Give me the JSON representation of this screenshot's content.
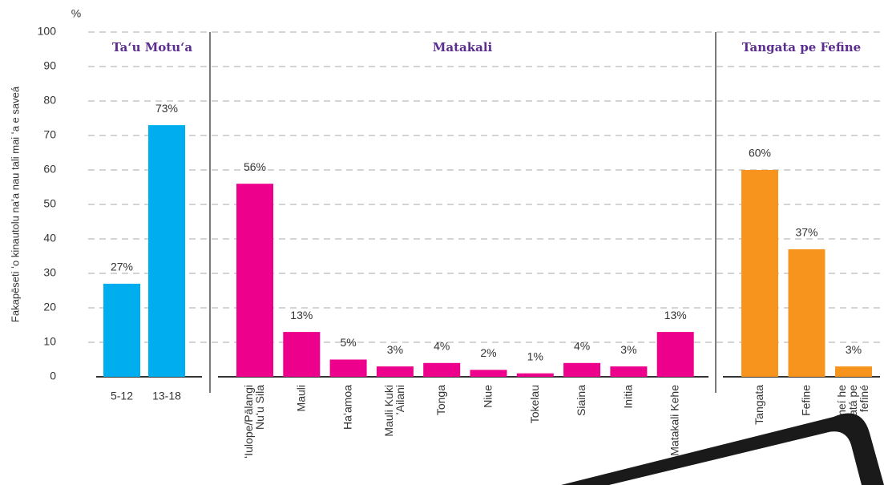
{
  "chart_data": {
    "type": "bar",
    "y_unit": "%",
    "ylabel": "Fakapēseti ʻo kinautolu naʻa nau tali mai ʻa e saveá",
    "ylim": [
      0,
      100
    ],
    "yticks": [
      0,
      10,
      20,
      30,
      40,
      50,
      60,
      70,
      80,
      90,
      100
    ],
    "grid": true,
    "groups": [
      {
        "name": "Taʻu Motuʻa",
        "color": "#00aeef",
        "categories": [
          "5-12",
          "13-18"
        ],
        "values": [
          27,
          73
        ],
        "value_labels": [
          "27%",
          "73%"
        ]
      },
      {
        "name": "Matakali",
        "color": "#ec008c",
        "categories": [
          "ʻIulope/Pālangi\nNuʻu Sila",
          "Mauli",
          "Haʻamoa",
          "Mauli Kuki\nʻAilani",
          "Tonga",
          "Niue",
          "Tokelau",
          "Siaina",
          "Initia",
          "Matakali Kehe"
        ],
        "values": [
          56,
          13,
          5,
          3,
          4,
          2,
          1,
          4,
          3,
          13
        ],
        "value_labels": [
          "56%",
          "13%",
          "5%",
          "3%",
          "4%",
          "2%",
          "1%",
          "4%",
          "3%",
          "13%"
        ]
      },
      {
        "name": "Tangata pe Fefine",
        "color": "#f7941d",
        "categories": [
          "Tangata",
          "Fefine",
          "Kehe meí he\ntangatá pe\nfefiné"
        ],
        "values": [
          60,
          37,
          3
        ],
        "value_labels": [
          "60%",
          "37%",
          "3%"
        ]
      }
    ]
  }
}
